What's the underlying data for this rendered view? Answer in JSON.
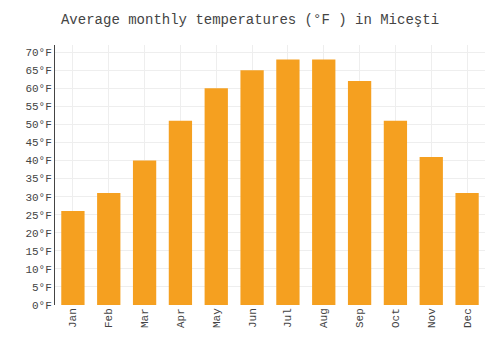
{
  "chart_data": {
    "type": "bar",
    "title": "Average monthly temperatures (°F ) in Miceşti",
    "categories": [
      "Jan",
      "Feb",
      "Mar",
      "Apr",
      "May",
      "Jun",
      "Jul",
      "Aug",
      "Sep",
      "Oct",
      "Nov",
      "Dec"
    ],
    "values": [
      26,
      31,
      40,
      51,
      60,
      65,
      68,
      68,
      62,
      51,
      41,
      31
    ],
    "color": "#F5A020",
    "ylim": [
      0,
      72
    ],
    "yticks": [
      {
        "value": 0,
        "label": "0°F"
      },
      {
        "value": 5,
        "label": "5°F"
      },
      {
        "value": 10,
        "label": "10°F"
      },
      {
        "value": 15,
        "label": "15°F"
      },
      {
        "value": 20,
        "label": "20°F"
      },
      {
        "value": 25,
        "label": "25°F"
      },
      {
        "value": 30,
        "label": "30°F"
      },
      {
        "value": 35,
        "label": "35°F"
      },
      {
        "value": 40,
        "label": "40°F"
      },
      {
        "value": 45,
        "label": "45°F"
      },
      {
        "value": 50,
        "label": "50°F"
      },
      {
        "value": 55,
        "label": "55°F"
      },
      {
        "value": 60,
        "label": "60°F"
      },
      {
        "value": 65,
        "label": "65°F"
      },
      {
        "value": 70,
        "label": "70°F"
      }
    ],
    "grid": true
  }
}
